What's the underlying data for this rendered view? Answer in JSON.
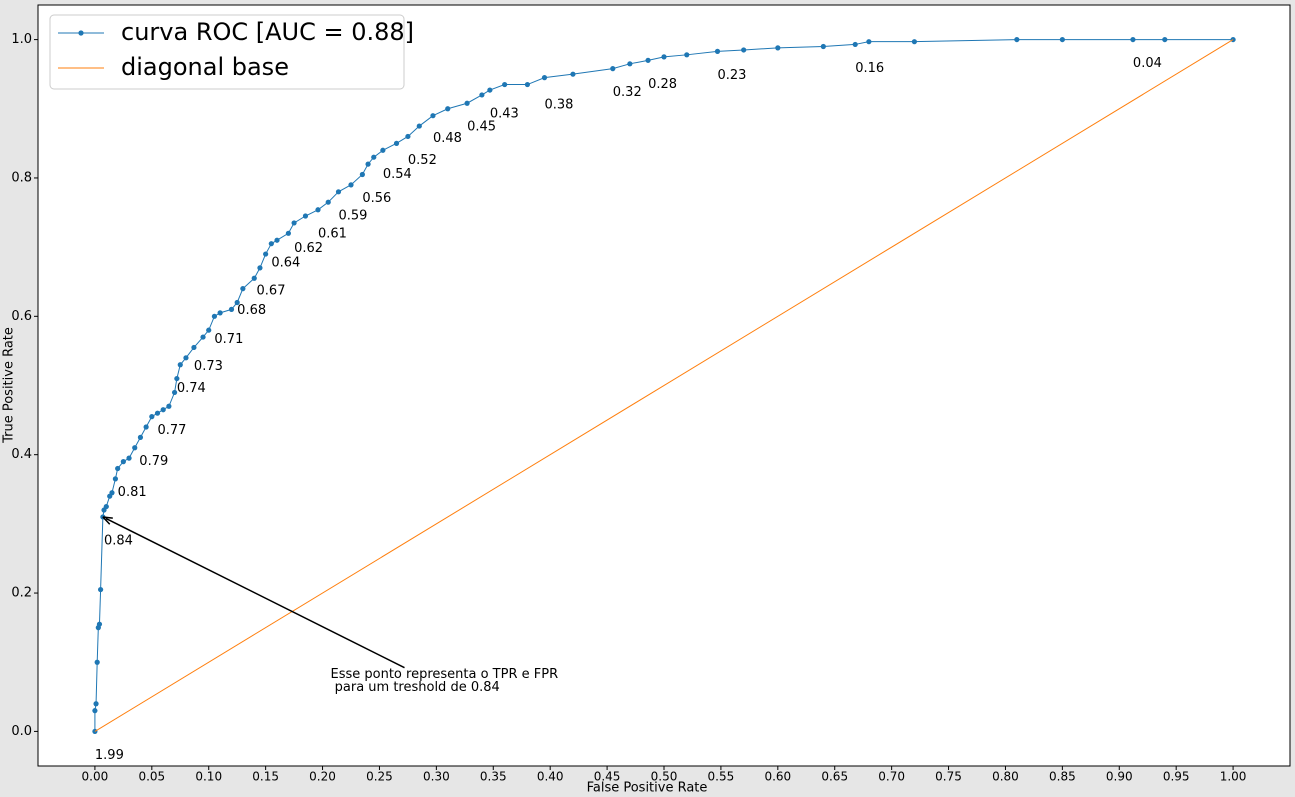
{
  "chart_data": {
    "type": "line",
    "xlabel": "False Positive Rate",
    "ylabel": "True Positive Rate",
    "xlim": [
      -0.05,
      1.05
    ],
    "ylim": [
      -0.05,
      1.05
    ],
    "xticks": [
      {
        "value": 0,
        "label": "0.00"
      },
      {
        "value": 0.05,
        "label": "0.05"
      },
      {
        "value": 0.1,
        "label": "0.10"
      },
      {
        "value": 0.15,
        "label": "0.15"
      },
      {
        "value": 0.2,
        "label": "0.20"
      },
      {
        "value": 0.25,
        "label": "0.25"
      },
      {
        "value": 0.3,
        "label": "0.30"
      },
      {
        "value": 0.35,
        "label": "0.35"
      },
      {
        "value": 0.4,
        "label": "0.40"
      },
      {
        "value": 0.45,
        "label": "0.45"
      },
      {
        "value": 0.5,
        "label": "0.50"
      },
      {
        "value": 0.55,
        "label": "0.55"
      },
      {
        "value": 0.6,
        "label": "0.60"
      },
      {
        "value": 0.65,
        "label": "0.65"
      },
      {
        "value": 0.7,
        "label": "0.70"
      },
      {
        "value": 0.75,
        "label": "0.75"
      },
      {
        "value": 0.8,
        "label": "0.80"
      },
      {
        "value": 0.85,
        "label": "0.85"
      },
      {
        "value": 0.9,
        "label": "0.90"
      },
      {
        "value": 0.95,
        "label": "0.95"
      },
      {
        "value": 1,
        "label": "1.00"
      }
    ],
    "yticks": [
      {
        "value": 0,
        "label": "0.0"
      },
      {
        "value": 0.2,
        "label": "0.2"
      },
      {
        "value": 0.4,
        "label": "0.4"
      },
      {
        "value": 0.6,
        "label": "0.6"
      },
      {
        "value": 0.8,
        "label": "0.8"
      },
      {
        "value": 1,
        "label": "1.0"
      }
    ],
    "legend": "upper left",
    "series": [
      {
        "name": "curva ROC [AUC = 0.88]",
        "color": "#1f77b4",
        "marker": true,
        "x": [
          0,
          0,
          0.001,
          0.002,
          0.003,
          0.004,
          0.005,
          0.007,
          0.008,
          0.01,
          0.013,
          0.015,
          0.018,
          0.02,
          0.025,
          0.03,
          0.035,
          0.04,
          0.045,
          0.05,
          0.055,
          0.06,
          0.065,
          0.07,
          0.072,
          0.075,
          0.08,
          0.087,
          0.095,
          0.1,
          0.105,
          0.11,
          0.12,
          0.125,
          0.13,
          0.14,
          0.145,
          0.15,
          0.155,
          0.16,
          0.17,
          0.175,
          0.185,
          0.196,
          0.205,
          0.214,
          0.225,
          0.235,
          0.24,
          0.245,
          0.253,
          0.265,
          0.275,
          0.285,
          0.297,
          0.31,
          0.327,
          0.34,
          0.347,
          0.36,
          0.38,
          0.395,
          0.42,
          0.455,
          0.47,
          0.486,
          0.5,
          0.52,
          0.547,
          0.57,
          0.6,
          0.64,
          0.668,
          0.68,
          0.72,
          0.81,
          0.85,
          0.912,
          0.94,
          1.0
        ],
        "values": [
          0,
          0.03,
          0.04,
          0.1,
          0.15,
          0.155,
          0.205,
          0.31,
          0.32,
          0.325,
          0.34,
          0.345,
          0.365,
          0.38,
          0.39,
          0.395,
          0.41,
          0.425,
          0.44,
          0.455,
          0.46,
          0.465,
          0.47,
          0.49,
          0.51,
          0.53,
          0.54,
          0.555,
          0.57,
          0.58,
          0.6,
          0.605,
          0.61,
          0.62,
          0.64,
          0.655,
          0.67,
          0.69,
          0.705,
          0.71,
          0.72,
          0.735,
          0.745,
          0.754,
          0.765,
          0.78,
          0.79,
          0.805,
          0.82,
          0.83,
          0.84,
          0.85,
          0.86,
          0.875,
          0.89,
          0.9,
          0.908,
          0.92,
          0.927,
          0.935,
          0.935,
          0.945,
          0.95,
          0.958,
          0.965,
          0.97,
          0.975,
          0.978,
          0.983,
          0.985,
          0.988,
          0.99,
          0.993,
          0.997,
          0.997,
          1.0,
          1.0,
          1.0,
          1.0,
          1.0
        ]
      },
      {
        "name": "diagonal base",
        "color": "#ff7f0e",
        "marker": false,
        "x": [
          0,
          1
        ],
        "values": [
          0,
          1
        ]
      }
    ],
    "annotations": [
      {
        "text": "1.99",
        "x": 0,
        "y": 0
      },
      {
        "text": "0.84",
        "x": 0.008,
        "y": 0.31
      },
      {
        "text": "0.81",
        "x": 0.02,
        "y": 0.38
      },
      {
        "text": "0.79",
        "x": 0.039,
        "y": 0.425
      },
      {
        "text": "0.77",
        "x": 0.055,
        "y": 0.47
      },
      {
        "text": "0.74",
        "x": 0.072,
        "y": 0.53
      },
      {
        "text": "0.73",
        "x": 0.087,
        "y": 0.562
      },
      {
        "text": "0.71",
        "x": 0.105,
        "y": 0.601
      },
      {
        "text": "0.68",
        "x": 0.125,
        "y": 0.643
      },
      {
        "text": "0.67",
        "x": 0.142,
        "y": 0.671
      },
      {
        "text": "0.64",
        "x": 0.155,
        "y": 0.712
      },
      {
        "text": "0.62",
        "x": 0.175,
        "y": 0.733
      },
      {
        "text": "0.61",
        "x": 0.196,
        "y": 0.754
      },
      {
        "text": "0.59",
        "x": 0.214,
        "y": 0.78
      },
      {
        "text": "0.56",
        "x": 0.235,
        "y": 0.805
      },
      {
        "text": "0.54",
        "x": 0.253,
        "y": 0.84
      },
      {
        "text": "0.52",
        "x": 0.275,
        "y": 0.86
      },
      {
        "text": "0.48",
        "x": 0.297,
        "y": 0.892
      },
      {
        "text": "0.45",
        "x": 0.327,
        "y": 0.908
      },
      {
        "text": "0.43",
        "x": 0.347,
        "y": 0.927
      },
      {
        "text": "0.38",
        "x": 0.395,
        "y": 0.94
      },
      {
        "text": "0.32",
        "x": 0.455,
        "y": 0.958
      },
      {
        "text": "0.28",
        "x": 0.486,
        "y": 0.97
      },
      {
        "text": "0.23",
        "x": 0.547,
        "y": 0.983
      },
      {
        "text": "0.16",
        "x": 0.668,
        "y": 0.993
      },
      {
        "text": "0.04",
        "x": 0.912,
        "y": 1.0
      }
    ],
    "arrow_annotation": {
      "text": [
        "Esse ponto representa o TPR e FPR",
        " para um treshold de 0.84"
      ],
      "xy": [
        0.007,
        0.31
      ],
      "xytext": [
        0.207,
        0.082
      ]
    }
  }
}
